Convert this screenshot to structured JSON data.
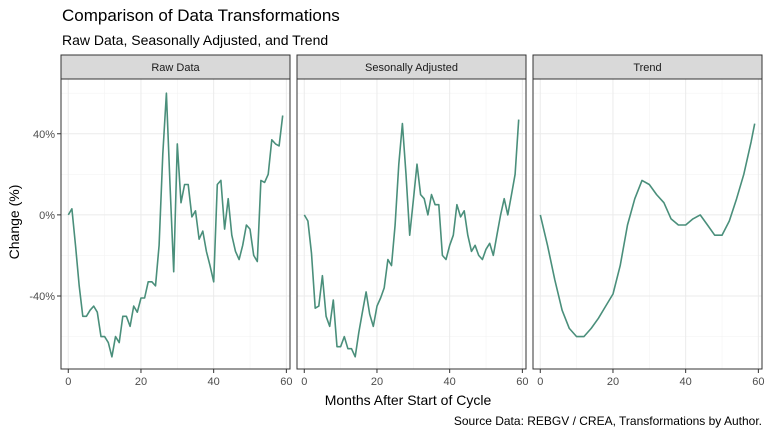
{
  "title": "Comparison of Data Transformations",
  "subtitle": "Raw Data, Seasonally Adjusted, and Trend",
  "caption": "Source Data: REBGV / CREA, Transformations by Author.",
  "colors": {
    "line": "#4a8f7b",
    "strip": "#d9d9d9",
    "grid": "#ebebeb",
    "border": "#333333",
    "text": "#4d4d4d"
  },
  "chart_data": {
    "type": "line",
    "xlabel": "Months After Start of Cycle",
    "ylabel": "Change (%)",
    "xlim": [
      -2,
      61
    ],
    "ylim": [
      -0.76,
      0.67
    ],
    "x_ticks": [
      0,
      20,
      40,
      60
    ],
    "y_ticks": [
      -0.4,
      0,
      0.4
    ],
    "y_tick_labels": [
      "-40%",
      "0%",
      "40%"
    ],
    "grid": true,
    "facets": [
      {
        "name": "Raw Data",
        "x": [
          0,
          1,
          2,
          3,
          4,
          5,
          6,
          7,
          8,
          9,
          10,
          11,
          12,
          13,
          14,
          15,
          16,
          17,
          18,
          19,
          20,
          21,
          22,
          23,
          24,
          25,
          26,
          27,
          28,
          29,
          30,
          31,
          32,
          33,
          34,
          35,
          36,
          37,
          38,
          39,
          40,
          41,
          42,
          43,
          44,
          45,
          46,
          47,
          48,
          49,
          50,
          51,
          52,
          53,
          54,
          55,
          56,
          57,
          58,
          59
        ],
        "y": [
          0,
          0.03,
          -0.15,
          -0.35,
          -0.5,
          -0.5,
          -0.47,
          -0.45,
          -0.48,
          -0.6,
          -0.6,
          -0.63,
          -0.7,
          -0.6,
          -0.63,
          -0.5,
          -0.5,
          -0.55,
          -0.45,
          -0.48,
          -0.41,
          -0.41,
          -0.33,
          -0.33,
          -0.35,
          -0.15,
          0.3,
          0.6,
          0.15,
          -0.28,
          0.35,
          0.06,
          0.15,
          0.15,
          -0.01,
          0.02,
          -0.12,
          -0.08,
          -0.18,
          -0.25,
          -0.33,
          0.15,
          0.17,
          -0.07,
          0.08,
          -0.1,
          -0.18,
          -0.22,
          -0.15,
          -0.05,
          -0.07,
          -0.2,
          -0.23,
          0.17,
          0.16,
          0.2,
          0.37,
          0.35,
          0.34,
          0.49
        ]
      },
      {
        "name": "Sesonally Adjusted",
        "x": [
          0,
          1,
          2,
          3,
          4,
          5,
          6,
          7,
          8,
          9,
          10,
          11,
          12,
          13,
          14,
          15,
          16,
          17,
          18,
          19,
          20,
          21,
          22,
          23,
          24,
          25,
          26,
          27,
          28,
          29,
          30,
          31,
          32,
          33,
          34,
          35,
          36,
          37,
          38,
          39,
          40,
          41,
          42,
          43,
          44,
          45,
          46,
          47,
          48,
          49,
          50,
          51,
          52,
          53,
          54,
          55,
          56,
          57,
          58,
          59
        ],
        "y": [
          0,
          -0.03,
          -0.19,
          -0.46,
          -0.45,
          -0.3,
          -0.5,
          -0.55,
          -0.42,
          -0.65,
          -0.65,
          -0.6,
          -0.66,
          -0.66,
          -0.7,
          -0.58,
          -0.48,
          -0.38,
          -0.49,
          -0.55,
          -0.45,
          -0.41,
          -0.36,
          -0.22,
          -0.25,
          -0.05,
          0.25,
          0.45,
          0.2,
          -0.1,
          0.07,
          0.25,
          0.1,
          0.08,
          0,
          0.1,
          0.05,
          0.05,
          -0.2,
          -0.22,
          -0.15,
          -0.1,
          0.05,
          -0.01,
          0.02,
          -0.1,
          -0.18,
          -0.15,
          -0.2,
          -0.22,
          -0.17,
          -0.14,
          -0.2,
          -0.1,
          0,
          0.08,
          0,
          0.1,
          0.2,
          0.47
        ]
      },
      {
        "name": "Trend",
        "x": [
          0,
          2,
          4,
          6,
          8,
          10,
          12,
          14,
          16,
          18,
          20,
          22,
          24,
          26,
          28,
          30,
          32,
          34,
          36,
          38,
          40,
          42,
          44,
          46,
          48,
          50,
          52,
          54,
          56,
          58,
          59
        ],
        "y": [
          0,
          -0.15,
          -0.32,
          -0.47,
          -0.56,
          -0.6,
          -0.6,
          -0.56,
          -0.51,
          -0.45,
          -0.39,
          -0.25,
          -0.05,
          0.08,
          0.17,
          0.15,
          0.1,
          0.06,
          -0.02,
          -0.05,
          -0.05,
          -0.02,
          0,
          -0.05,
          -0.1,
          -0.1,
          -0.03,
          0.08,
          0.2,
          0.36,
          0.45
        ]
      }
    ]
  }
}
